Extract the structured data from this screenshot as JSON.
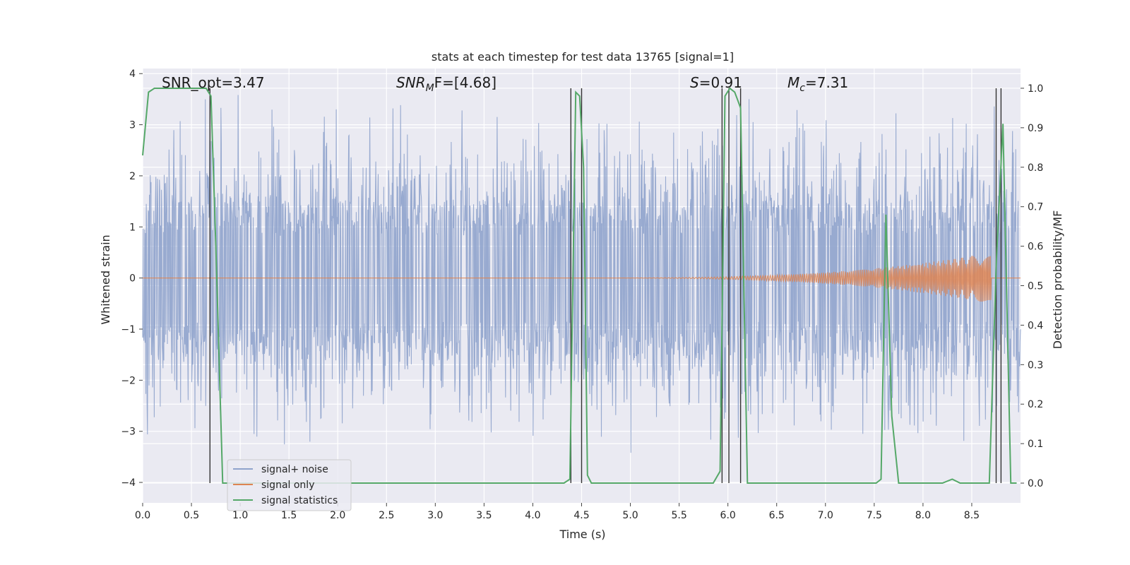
{
  "chart_data": {
    "type": "line",
    "title": "stats at each timestep for test data 13765 [signal=1]",
    "xlabel": "Time (s)",
    "ylabel": "Whitened strain",
    "ylabel_right": "Detection probability/MF",
    "xlim": [
      0.0,
      9.0
    ],
    "ylim": [
      -4.4,
      4.1
    ],
    "ylim_right": [
      -0.05,
      1.05
    ],
    "x_ticks": [
      "0.0",
      "0.5",
      "1.0",
      "1.5",
      "2.0",
      "2.5",
      "3.0",
      "3.5",
      "4.0",
      "4.5",
      "5.0",
      "5.5",
      "6.0",
      "6.5",
      "7.0",
      "7.5",
      "8.0",
      "8.5"
    ],
    "x_tick_values": [
      0.0,
      0.5,
      1.0,
      1.5,
      2.0,
      2.5,
      3.0,
      3.5,
      4.0,
      4.5,
      5.0,
      5.5,
      6.0,
      6.5,
      7.0,
      7.5,
      8.0,
      8.5
    ],
    "y_ticks": [
      "4",
      "3",
      "2",
      "1",
      "0",
      "−1",
      "−2",
      "−3",
      "−4"
    ],
    "y_tick_values": [
      4,
      3,
      2,
      1,
      0,
      -1,
      -2,
      -3,
      -4
    ],
    "y_right_ticks": [
      "1.0",
      "0.9",
      "0.8",
      "0.7",
      "0.6",
      "0.5",
      "0.4",
      "0.3",
      "0.2",
      "0.1",
      "0.0"
    ],
    "y_right_tick_values": [
      1.0,
      0.9,
      0.8,
      0.7,
      0.6,
      0.5,
      0.4,
      0.3,
      0.2,
      0.1,
      0.0
    ],
    "grid": true,
    "legend_position": "bottom-left",
    "annotations": {
      "snr_opt": "SNR_opt=3.47",
      "snr_mf_prefix": "SNR",
      "snr_mf_sub": "M",
      "snr_mf_suffix": "F=[4.68]",
      "s_prefix": "S",
      "s_suffix": "=0.91",
      "mc_prefix": "M",
      "mc_sub": "c",
      "mc_suffix": "=7.31"
    },
    "series": [
      {
        "name": "signal+ noise",
        "color": "#8fa3cc",
        "axis": "left",
        "render": "noise",
        "envelope_typical": 1.5,
        "envelope_peak": 3.7,
        "points": 2200
      },
      {
        "name": "signal only",
        "color": "#dd8452",
        "axis": "left",
        "render": "chirp",
        "chirp_start_x": 4.4,
        "chirp_end_x": 8.7,
        "chirp_peak_amplitude": 0.5
      },
      {
        "name": "signal statistics",
        "color": "#55a868",
        "axis": "right",
        "x": [
          0.0,
          0.06,
          0.12,
          0.2,
          0.3,
          0.5,
          0.65,
          0.7,
          0.75,
          0.82,
          1.0,
          2.0,
          3.0,
          4.0,
          4.32,
          4.38,
          4.44,
          4.48,
          4.52,
          4.56,
          4.6,
          4.8,
          5.0,
          5.5,
          5.85,
          5.92,
          5.97,
          6.02,
          6.07,
          6.1,
          6.13,
          6.2,
          6.3,
          7.0,
          7.52,
          7.57,
          7.62,
          7.68,
          7.75,
          8.0,
          8.2,
          8.3,
          8.38,
          8.5,
          8.68,
          8.75,
          8.82,
          8.9,
          8.96
        ],
        "y": [
          0.83,
          0.99,
          1.0,
          1.0,
          1.0,
          1.0,
          1.0,
          0.98,
          0.6,
          0.0,
          0.0,
          0.0,
          0.0,
          0.0,
          0.0,
          0.01,
          0.99,
          0.98,
          0.8,
          0.02,
          0.0,
          0.0,
          0.0,
          0.0,
          0.0,
          0.03,
          0.98,
          1.0,
          0.99,
          0.97,
          0.95,
          0.0,
          0.0,
          0.0,
          0.0,
          0.01,
          0.68,
          0.17,
          0.0,
          0.0,
          0.0,
          0.01,
          0.0,
          0.0,
          0.0,
          0.55,
          0.91,
          0.0,
          0.0
        ]
      }
    ],
    "vlines": {
      "color": "#333333",
      "x": [
        0.69,
        4.39,
        4.5,
        5.94,
        6.01,
        6.13,
        8.75,
        8.8
      ]
    }
  }
}
